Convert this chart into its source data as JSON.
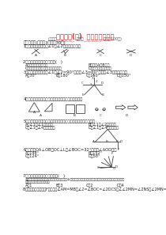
{
  "title": "单元测试(一)  相交线与平行线",
  "subtitle": "(班级：_________  姓名：_________  总分：100分)",
  "bg_color": "#ffffff",
  "title_color": "#cc2222",
  "section1": "一、选择题(每小题3分，共30分)",
  "q1": "1．下列角的图案中，∠1与∠2是对顶角的图为",
  "q2": "2．下列说法中，不正确的是(   )",
  "q2a": "A．两点之间线段最短",
  "q2b": "B．连接A、B两点",
  "q2c": "C．平行于同一直线的两条直线平行",
  "q2d": "D．相邻的角都是直角",
  "q3": "3．图形中竖直分角，∠1与∠2=90°，如果∠3=60°，那么∠3的度数分别为",
  "q3a": "A．30°",
  "q3b": "B．180°",
  "q3c": "C．110°",
  "q3d": "D．150°",
  "q4": "4．下面的图形中，关于的平衡线和用以固定如图的法",
  "q4a": "A",
  "q4b": "B",
  "q4c": "C",
  "q4d": "D",
  "q5": "5．如图，描述问题，内角处，对分内角是直角三角形位置关系为",
  "q5a": "A．∠1与∠1是同位角",
  "q5b": "B．∠1与∠2是内错角",
  "q5c": "C．∠1与∠4是错误同角",
  "q5d": "D．∠1与∠4是同侧内角",
  "q6": "6．如图，OA⊥OB，OC⊥L，∠BOC=32°，那么∠AOD等于",
  "q6a": "A．148°",
  "q6b": "B．152°",
  "q6c": "C．124°",
  "q6d": "D．58°",
  "q7": "7．下列命题中，是真命题的是(   )",
  "q7_text1": "①过一点有且仅有一条直线与已知直线平行；②过一点有且仅有一条直线与已知直线垂直，分别到平面内的",
  "q7_text2": "一定是平行的，不的则是垂",
  "q7a": "A．1",
  "q7b": "B．3",
  "q7c": "C．2",
  "q7d": "D．4",
  "q8": "8．如图，位于平行线F两条，且∠AM=MB，∠2=∠BOC=∠2DCS，∠∠2MN=∠2NS，∠2MN=∠2NS另半圆结论是(   )"
}
